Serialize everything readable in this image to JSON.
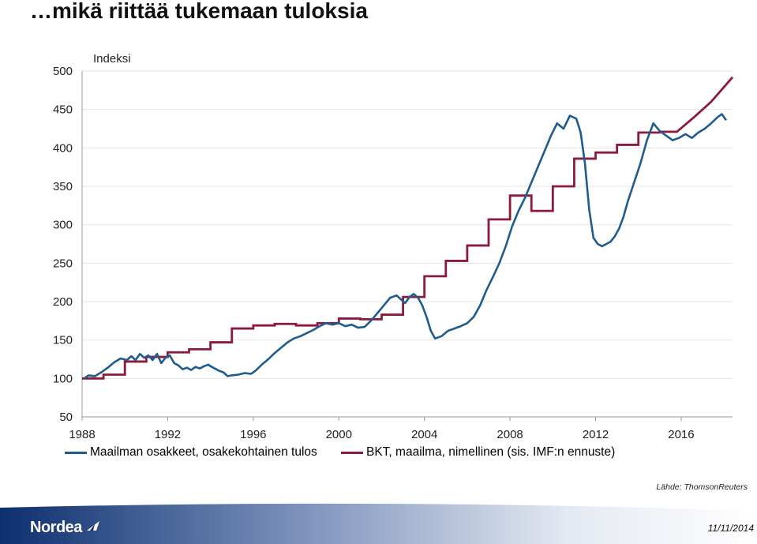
{
  "page": {
    "title": "…mikä riittää tukemaan tuloksia",
    "source": "Lähde: ThomsonReuters",
    "date": "11/11/2014",
    "logo": "Nordea"
  },
  "colors": {
    "equity": "#1F5C8E",
    "gdp": "#8C1A3C",
    "axis": "#999999",
    "grid": "#E6E6E6"
  },
  "chart_data": {
    "type": "line",
    "title": "",
    "ylabel": "Indeksi",
    "xlabel": "",
    "xlim": [
      1988,
      2018.4
    ],
    "ylim": [
      50,
      500
    ],
    "yticks": [
      50,
      100,
      150,
      200,
      250,
      300,
      350,
      400,
      450,
      500
    ],
    "xticks": [
      1988,
      1992,
      1996,
      2000,
      2004,
      2008,
      2012,
      2016
    ],
    "grid": true,
    "legend_position": "bottom",
    "series": [
      {
        "name": "Maailman osakkeet, osakekohtainen tulos",
        "color": "#1F5C8E",
        "kind": "line",
        "points": [
          [
            1988.1,
            100
          ],
          [
            1988.3,
            104
          ],
          [
            1988.6,
            103
          ],
          [
            1988.9,
            108
          ],
          [
            1989.2,
            114
          ],
          [
            1989.5,
            121
          ],
          [
            1989.8,
            126
          ],
          [
            1990.1,
            124
          ],
          [
            1990.3,
            129
          ],
          [
            1990.5,
            124
          ],
          [
            1990.7,
            132
          ],
          [
            1990.9,
            127
          ],
          [
            1991.1,
            130
          ],
          [
            1991.3,
            124
          ],
          [
            1991.5,
            132
          ],
          [
            1991.7,
            120
          ],
          [
            1991.9,
            127
          ],
          [
            1992.1,
            130
          ],
          [
            1992.3,
            120
          ],
          [
            1992.5,
            117
          ],
          [
            1992.7,
            112
          ],
          [
            1992.9,
            114
          ],
          [
            1993.1,
            111
          ],
          [
            1993.3,
            115
          ],
          [
            1993.5,
            113
          ],
          [
            1993.7,
            116
          ],
          [
            1993.9,
            118
          ],
          [
            1994.0,
            116
          ],
          [
            1994.2,
            113
          ],
          [
            1994.4,
            110
          ],
          [
            1994.6,
            108
          ],
          [
            1994.8,
            103
          ],
          [
            1995.0,
            104
          ],
          [
            1995.3,
            105
          ],
          [
            1995.6,
            107
          ],
          [
            1995.9,
            106
          ],
          [
            1996.1,
            110
          ],
          [
            1996.4,
            118
          ],
          [
            1996.7,
            125
          ],
          [
            1997.0,
            133
          ],
          [
            1997.3,
            140
          ],
          [
            1997.6,
            147
          ],
          [
            1997.9,
            152
          ],
          [
            1998.2,
            155
          ],
          [
            1998.5,
            159
          ],
          [
            1998.8,
            163
          ],
          [
            1999.1,
            168
          ],
          [
            1999.4,
            172
          ],
          [
            1999.7,
            170
          ],
          [
            2000.0,
            172
          ],
          [
            2000.3,
            168
          ],
          [
            2000.6,
            170
          ],
          [
            2000.9,
            166
          ],
          [
            2001.2,
            167
          ],
          [
            2001.5,
            175
          ],
          [
            2001.8,
            185
          ],
          [
            2002.1,
            195
          ],
          [
            2002.4,
            205
          ],
          [
            2002.7,
            208
          ],
          [
            2002.9,
            203
          ],
          [
            2003.1,
            198
          ],
          [
            2003.3,
            206
          ],
          [
            2003.5,
            210
          ],
          [
            2003.7,
            205
          ],
          [
            2003.9,
            195
          ],
          [
            2004.1,
            180
          ],
          [
            2004.3,
            162
          ],
          [
            2004.5,
            152
          ],
          [
            2004.8,
            155
          ],
          [
            2005.1,
            162
          ],
          [
            2005.4,
            165
          ],
          [
            2005.7,
            168
          ],
          [
            2006.0,
            172
          ],
          [
            2006.3,
            180
          ],
          [
            2006.6,
            195
          ],
          [
            2006.9,
            215
          ],
          [
            2007.2,
            232
          ],
          [
            2007.5,
            250
          ],
          [
            2007.8,
            272
          ],
          [
            2008.1,
            298
          ],
          [
            2008.4,
            318
          ],
          [
            2008.7,
            335
          ],
          [
            2009.0,
            355
          ],
          [
            2009.3,
            375
          ],
          [
            2009.6,
            395
          ],
          [
            2009.9,
            415
          ],
          [
            2010.2,
            432
          ],
          [
            2010.5,
            425
          ],
          [
            2010.8,
            442
          ],
          [
            2011.1,
            438
          ],
          [
            2011.3,
            420
          ],
          [
            2011.5,
            380
          ],
          [
            2011.7,
            320
          ],
          [
            2011.9,
            283
          ],
          [
            2012.1,
            275
          ],
          [
            2012.3,
            272
          ],
          [
            2012.5,
            275
          ],
          [
            2012.7,
            278
          ],
          [
            2012.9,
            285
          ],
          [
            2013.1,
            295
          ],
          [
            2013.3,
            310
          ],
          [
            2013.5,
            330
          ],
          [
            2013.8,
            355
          ],
          [
            2014.1,
            380
          ],
          [
            2014.4,
            410
          ],
          [
            2014.7,
            432
          ],
          [
            2015.0,
            422
          ],
          [
            2015.3,
            416
          ],
          [
            2015.6,
            410
          ],
          [
            2015.9,
            413
          ],
          [
            2016.2,
            418
          ],
          [
            2016.5,
            413
          ],
          [
            2016.8,
            420
          ],
          [
            2017.1,
            425
          ],
          [
            2017.4,
            432
          ],
          [
            2017.7,
            440
          ],
          [
            2017.9,
            444
          ],
          [
            2018.1,
            436
          ]
        ]
      },
      {
        "name": "BKT, maailma, nimellinen (sis. IMF:n ennuste)",
        "color": "#8C1A3C",
        "kind": "step",
        "points": [
          [
            1988.0,
            100
          ],
          [
            1989.0,
            105
          ],
          [
            1990.0,
            122
          ],
          [
            1991.0,
            128
          ],
          [
            1992.0,
            134
          ],
          [
            1993.0,
            138
          ],
          [
            1994.0,
            147
          ],
          [
            1995.0,
            165
          ],
          [
            1996.0,
            169
          ],
          [
            1997.0,
            171
          ],
          [
            1998.0,
            169
          ],
          [
            1999.0,
            172
          ],
          [
            2000.0,
            178
          ],
          [
            2001.0,
            177
          ],
          [
            2002.0,
            183
          ],
          [
            2003.0,
            206
          ],
          [
            2004.0,
            233
          ],
          [
            2005.0,
            253
          ],
          [
            2006.0,
            273
          ],
          [
            2007.0,
            307
          ],
          [
            2008.0,
            338
          ],
          [
            2009.0,
            318
          ],
          [
            2010.0,
            350
          ],
          [
            2011.0,
            386
          ],
          [
            2012.0,
            394
          ],
          [
            2013.0,
            404
          ],
          [
            2014.0,
            420
          ],
          [
            2015.0,
            421
          ]
        ],
        "forecast": [
          [
            2015.8,
            421
          ],
          [
            2016.6,
            440
          ],
          [
            2017.4,
            460
          ],
          [
            2018.4,
            492
          ]
        ]
      }
    ]
  }
}
